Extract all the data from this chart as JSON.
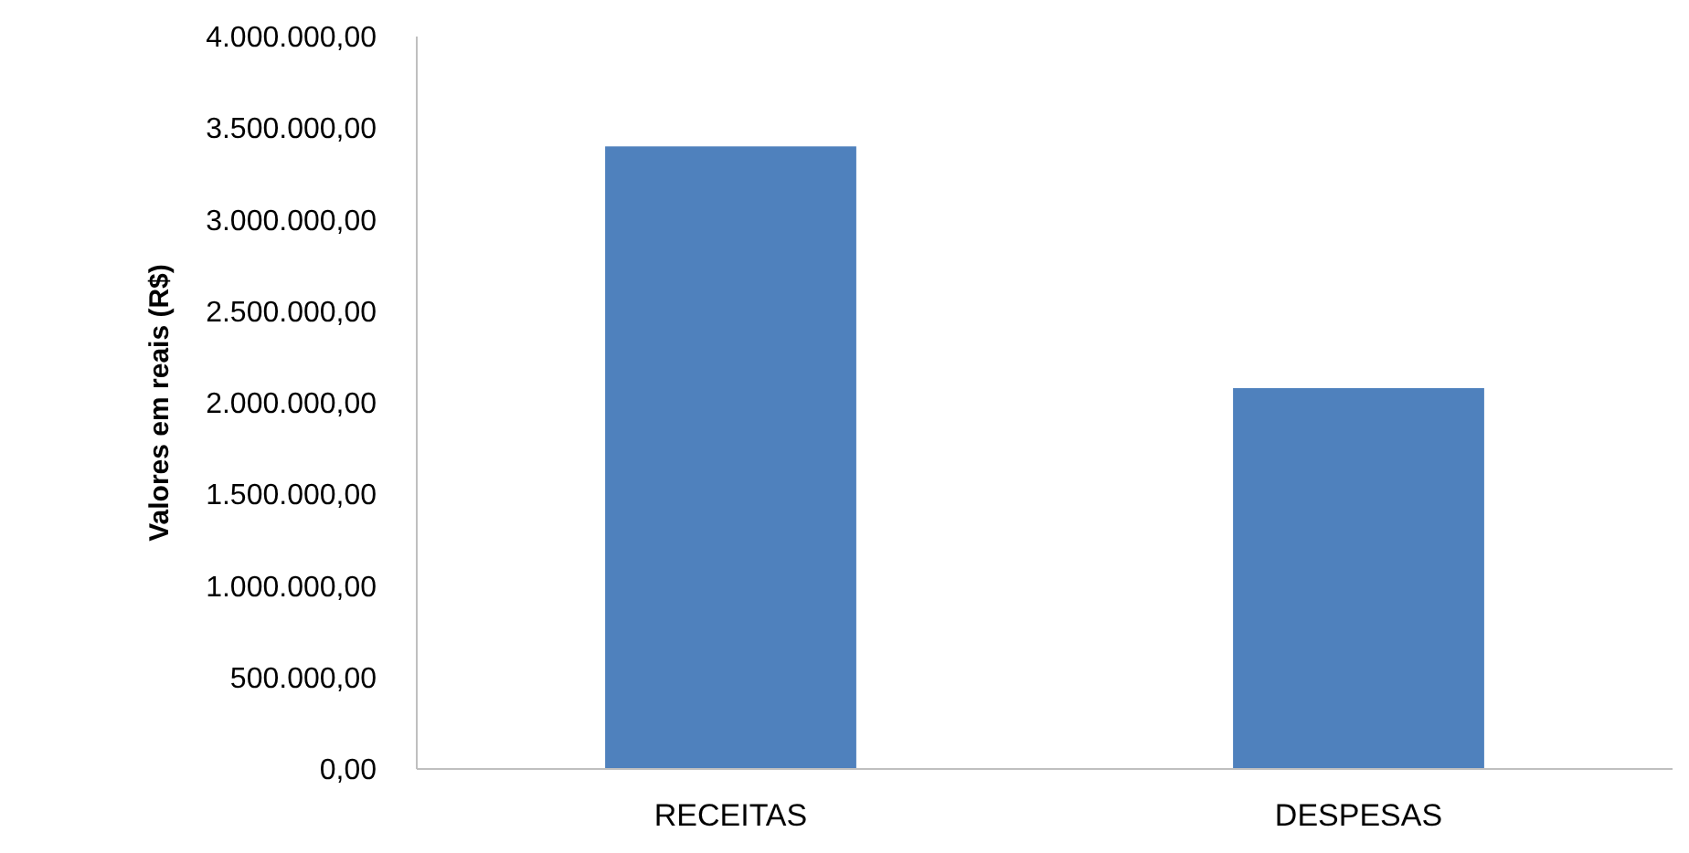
{
  "chart_data": {
    "type": "bar",
    "ylabel": "Valores em reais (R$)",
    "categories": [
      "RECEITAS",
      "DESPESAS"
    ],
    "values": [
      3400000,
      2080000
    ],
    "color": "#4f81bd",
    "ylim": [
      0,
      4000000
    ],
    "yticks": [
      {
        "value": 0,
        "label": "0,00"
      },
      {
        "value": 500000,
        "label": "500.000,00"
      },
      {
        "value": 1000000,
        "label": "1.000.000,00"
      },
      {
        "value": 1500000,
        "label": "1.500.000,00"
      },
      {
        "value": 2000000,
        "label": "2.000.000,00"
      },
      {
        "value": 2500000,
        "label": "2.500.000,00"
      },
      {
        "value": 3000000,
        "label": "3.000.000,00"
      },
      {
        "value": 3500000,
        "label": "3.500.000,00"
      },
      {
        "value": 4000000,
        "label": "4.000.000,00"
      }
    ],
    "grid": false
  }
}
